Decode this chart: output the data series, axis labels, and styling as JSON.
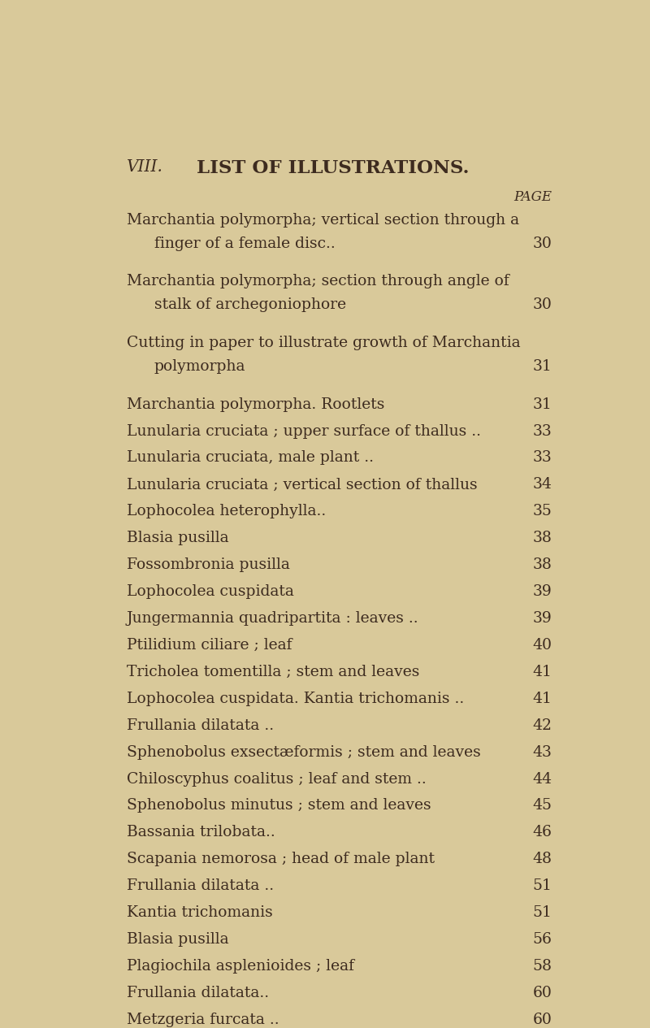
{
  "background_color": "#d9c99a",
  "text_color": "#3d2b1f",
  "header_left": "VIII.",
  "header_center": "LIST OF ILLUSTRATIONS.",
  "page_label": "PAGE",
  "entries": [
    {
      "line1": "Marchantia polymorpha; vertical section through a",
      "line2": "finger of a female disc..",
      "page": "30",
      "multiline": true
    },
    {
      "line1": "Marchantia polymorpha; section through angle of",
      "line2": "stalk of archegoniophore",
      "page": "30",
      "multiline": true
    },
    {
      "line1": "Cutting in paper to illustrate growth of Marchantia",
      "line2": "polymorpha",
      "page": "31",
      "multiline": true
    },
    {
      "line1": "Marchantia polymorpha. Rootlets",
      "page": "31",
      "multiline": false
    },
    {
      "line1": "Lunularia cruciata ; upper surface of thallus ..",
      "page": "33",
      "multiline": false
    },
    {
      "line1": "Lunularia cruciata, male plant ..",
      "page": "33",
      "multiline": false
    },
    {
      "line1": "Lunularia cruciata ; vertical section of thallus",
      "page": "34",
      "multiline": false
    },
    {
      "line1": "Lophocolea heterophylla..",
      "page": "35",
      "multiline": false
    },
    {
      "line1": "Blasia pusilla",
      "page": "38",
      "multiline": false
    },
    {
      "line1": "Fossombronia pusilla",
      "page": "38",
      "multiline": false
    },
    {
      "line1": "Lophocolea cuspidata",
      "page": "39",
      "multiline": false
    },
    {
      "line1": "Jungermannia quadripartita : leaves ..",
      "page": "39",
      "multiline": false
    },
    {
      "line1": "Ptilidium ciliare ; leaf",
      "page": "40",
      "multiline": false
    },
    {
      "line1": "Tricholea tomentilla ; stem and leaves",
      "page": "41",
      "multiline": false
    },
    {
      "line1": "Lophocolea cuspidata. Kantia trichomanis ..",
      "page": "41",
      "multiline": false
    },
    {
      "line1": "Frullania dilatata ..",
      "page": "42",
      "multiline": false
    },
    {
      "line1": "Sphenobolus exsectæformis ; stem and leaves",
      "page": "43",
      "multiline": false
    },
    {
      "line1": "Chiloscyphus coalitus ; leaf and stem ..",
      "page": "44",
      "multiline": false
    },
    {
      "line1": "Sphenobolus minutus ; stem and leaves",
      "page": "45",
      "multiline": false
    },
    {
      "line1": "Bassania trilobata..",
      "page": "46",
      "multiline": false
    },
    {
      "line1": "Scapania nemorosa ; head of male plant",
      "page": "48",
      "multiline": false
    },
    {
      "line1": "Frullania dilatata ..",
      "page": "51",
      "multiline": false
    },
    {
      "line1": "Kantia trichomanis",
      "page": "51",
      "multiline": false
    },
    {
      "line1": "Blasia pusilla",
      "page": "56",
      "multiline": false
    },
    {
      "line1": "Plagiochila asplenioides ; leaf",
      "page": "58",
      "multiline": false
    },
    {
      "line1": "Frullania dilatata..",
      "page": "60",
      "multiline": false
    },
    {
      "line1": "Metzgeria furcata ..",
      "page": "60",
      "multiline": false
    }
  ],
  "fig_width": 8.0,
  "fig_height": 12.65,
  "font_size": 13.5,
  "header_font_size": 16.5,
  "page_num_font_size": 13.5
}
